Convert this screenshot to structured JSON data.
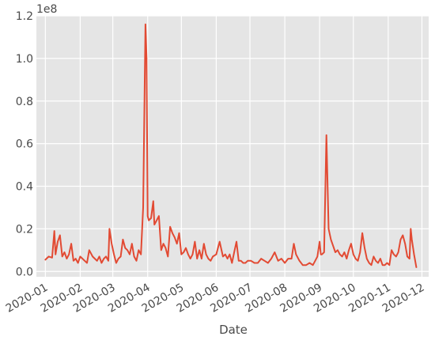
{
  "chart_data": {
    "type": "line",
    "title": "",
    "xlabel": "Date",
    "ylabel": "",
    "offset_text": "1e8",
    "grid": true,
    "legend": false,
    "colors": {
      "line": "#e24a33",
      "background": "#e5e5e5",
      "grid": "#ffffff",
      "text": "#4a4a4a"
    },
    "xlim": [
      "2019-12-24",
      "2020-12-07"
    ],
    "ylim": [
      -2500000,
      120000000
    ],
    "x_tick_labels": [
      "2020-01",
      "2020-02",
      "2020-03",
      "2020-04",
      "2020-05",
      "2020-06",
      "2020-07",
      "2020-08",
      "2020-09",
      "2020-10",
      "2020-11",
      "2020-12"
    ],
    "x_ticks": [
      "2020-01-01",
      "2020-02-01",
      "2020-03-01",
      "2020-04-01",
      "2020-05-01",
      "2020-06-01",
      "2020-07-01",
      "2020-08-01",
      "2020-09-01",
      "2020-10-01",
      "2020-11-01",
      "2020-12-01"
    ],
    "y_ticks": [
      0,
      20000000,
      40000000,
      60000000,
      80000000,
      100000000,
      120000000
    ],
    "y_tick_labels": [
      "0.0",
      "0.2",
      "0.4",
      "0.6",
      "0.8",
      "1.0",
      "1.2"
    ],
    "series": [
      {
        "x": [
          "2020-01-01",
          "2020-01-04",
          "2020-01-07",
          "2020-01-09",
          "2020-01-10",
          "2020-01-12",
          "2020-01-14",
          "2020-01-16",
          "2020-01-18",
          "2020-01-20",
          "2020-01-22",
          "2020-01-24",
          "2020-01-26",
          "2020-01-28",
          "2020-01-30",
          "2020-02-01",
          "2020-02-03",
          "2020-02-05",
          "2020-02-07",
          "2020-02-09",
          "2020-02-12",
          "2020-02-14",
          "2020-02-16",
          "2020-02-18",
          "2020-02-20",
          "2020-02-22",
          "2020-02-24",
          "2020-02-26",
          "2020-02-27",
          "2020-02-29",
          "2020-03-02",
          "2020-03-04",
          "2020-03-06",
          "2020-03-08",
          "2020-03-10",
          "2020-03-12",
          "2020-03-14",
          "2020-03-16",
          "2020-03-18",
          "2020-03-20",
          "2020-03-22",
          "2020-03-24",
          "2020-03-26",
          "2020-03-28",
          "2020-03-30",
          "2020-03-31",
          "2020-04-01",
          "2020-04-02",
          "2020-04-04",
          "2020-04-06",
          "2020-04-07",
          "2020-04-09",
          "2020-04-11",
          "2020-04-13",
          "2020-04-15",
          "2020-04-17",
          "2020-04-19",
          "2020-04-21",
          "2020-04-23",
          "2020-04-25",
          "2020-04-27",
          "2020-04-29",
          "2020-05-01",
          "2020-05-03",
          "2020-05-05",
          "2020-05-07",
          "2020-05-09",
          "2020-05-11",
          "2020-05-13",
          "2020-05-15",
          "2020-05-17",
          "2020-05-19",
          "2020-05-21",
          "2020-05-23",
          "2020-05-25",
          "2020-05-27",
          "2020-05-29",
          "2020-06-01",
          "2020-06-04",
          "2020-06-07",
          "2020-06-09",
          "2020-06-11",
          "2020-06-13",
          "2020-06-15",
          "2020-06-17",
          "2020-06-19",
          "2020-06-21",
          "2020-06-23",
          "2020-06-25",
          "2020-06-27",
          "2020-06-29",
          "2020-07-02",
          "2020-07-05",
          "2020-07-08",
          "2020-07-11",
          "2020-07-14",
          "2020-07-17",
          "2020-07-20",
          "2020-07-23",
          "2020-07-26",
          "2020-07-29",
          "2020-08-01",
          "2020-08-04",
          "2020-08-07",
          "2020-08-09",
          "2020-08-11",
          "2020-08-14",
          "2020-08-17",
          "2020-08-20",
          "2020-08-23",
          "2020-08-26",
          "2020-08-28",
          "2020-08-30",
          "2020-09-01",
          "2020-09-02",
          "2020-09-03",
          "2020-09-05",
          "2020-09-07",
          "2020-09-09",
          "2020-09-11",
          "2020-09-13",
          "2020-09-15",
          "2020-09-17",
          "2020-09-19",
          "2020-09-21",
          "2020-09-23",
          "2020-09-25",
          "2020-09-27",
          "2020-09-29",
          "2020-10-01",
          "2020-10-03",
          "2020-10-05",
          "2020-10-07",
          "2020-10-09",
          "2020-10-11",
          "2020-10-13",
          "2020-10-15",
          "2020-10-17",
          "2020-10-19",
          "2020-10-21",
          "2020-10-23",
          "2020-10-25",
          "2020-10-27",
          "2020-10-29",
          "2020-10-31",
          "2020-11-02",
          "2020-11-04",
          "2020-11-06",
          "2020-11-08",
          "2020-11-10",
          "2020-11-12",
          "2020-11-14",
          "2020-11-16",
          "2020-11-18",
          "2020-11-20",
          "2020-11-21",
          "2020-11-22",
          "2020-11-24",
          "2020-11-26"
        ],
        "values": [
          5500000,
          7000000,
          6500000,
          19000000,
          8000000,
          14000000,
          17000000,
          7000000,
          9000000,
          6000000,
          8000000,
          13000000,
          5000000,
          6000000,
          4000000,
          7000000,
          6000000,
          5000000,
          4000000,
          10000000,
          7000000,
          6000000,
          5000000,
          7000000,
          4000000,
          6000000,
          7000000,
          5000000,
          20000000,
          13000000,
          8000000,
          4000000,
          6000000,
          7000000,
          15000000,
          11000000,
          10000000,
          8000000,
          13000000,
          7000000,
          5000000,
          10000000,
          8000000,
          30000000,
          116000000,
          100000000,
          26000000,
          24000000,
          25000000,
          33000000,
          22000000,
          24000000,
          26000000,
          10000000,
          13000000,
          11000000,
          7000000,
          21000000,
          18000000,
          16000000,
          13000000,
          18000000,
          8000000,
          9000000,
          11000000,
          8000000,
          6000000,
          8000000,
          14000000,
          6000000,
          10000000,
          6000000,
          13000000,
          8000000,
          6000000,
          5000000,
          7000000,
          8000000,
          14000000,
          7000000,
          8000000,
          6000000,
          8000000,
          4000000,
          9000000,
          14000000,
          5000000,
          5000000,
          4000000,
          4000000,
          5000000,
          5000000,
          4000000,
          4000000,
          6000000,
          5000000,
          4000000,
          6000000,
          9000000,
          5000000,
          6000000,
          4000000,
          6000000,
          6000000,
          13000000,
          8000000,
          5000000,
          3000000,
          3000000,
          4000000,
          3000000,
          5000000,
          7000000,
          14000000,
          8000000,
          8000000,
          9000000,
          64000000,
          20000000,
          15000000,
          12000000,
          9000000,
          10000000,
          8000000,
          7000000,
          9000000,
          6000000,
          10000000,
          13000000,
          8000000,
          6000000,
          5000000,
          9000000,
          18000000,
          11000000,
          6000000,
          4000000,
          3000000,
          7000000,
          5000000,
          4000000,
          6000000,
          3000000,
          3000000,
          4000000,
          3000000,
          10000000,
          8000000,
          7000000,
          9000000,
          15000000,
          17000000,
          13000000,
          7000000,
          6000000,
          20000000,
          15000000,
          8000000,
          2000000
        ]
      }
    ]
  }
}
